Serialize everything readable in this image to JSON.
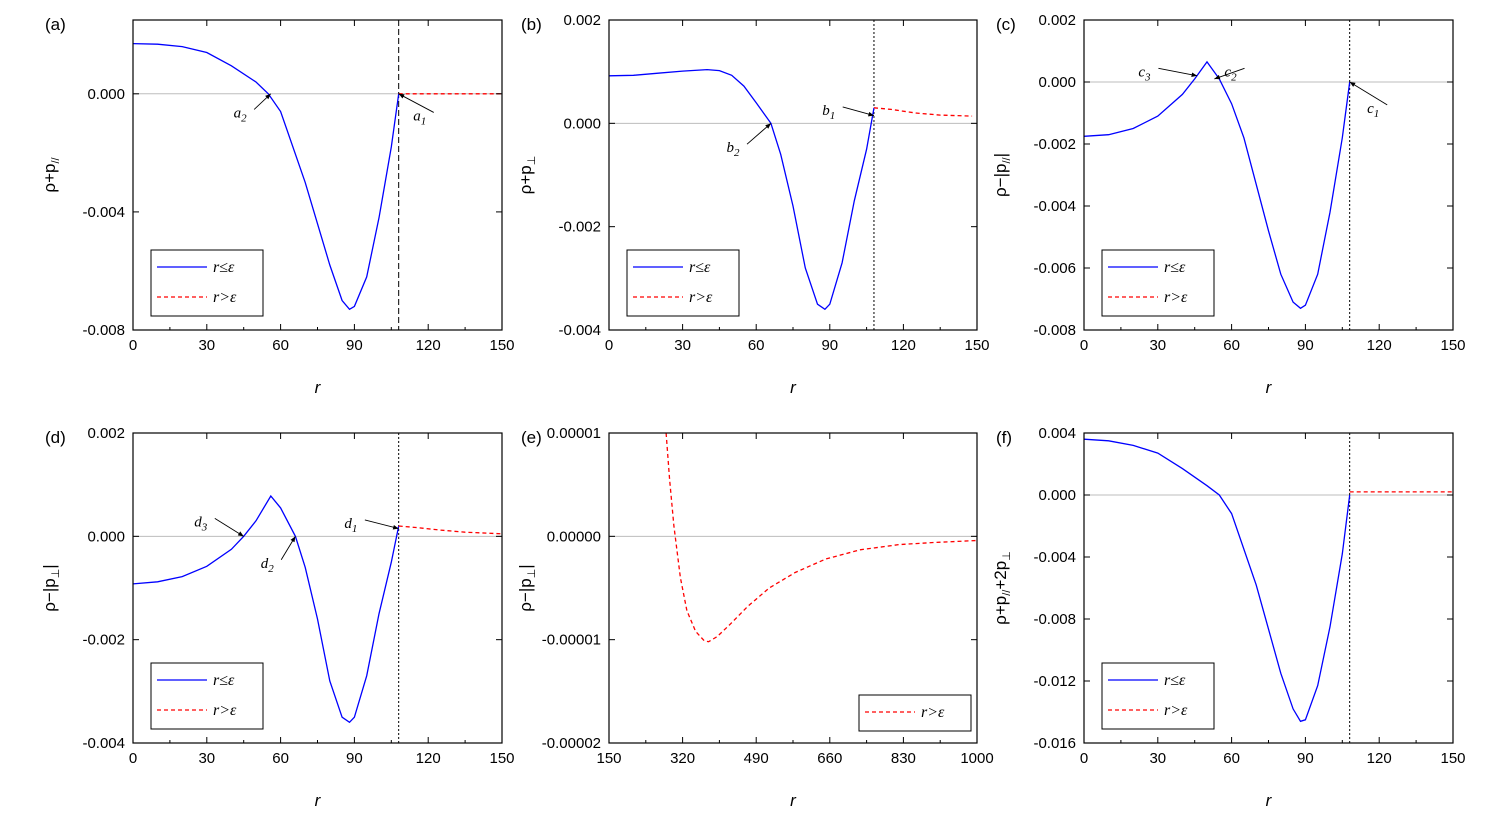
{
  "chart_data": [
    {
      "type": "line",
      "panel_label": "(a)",
      "xlabel": "r",
      "ylabel": [
        "ρ+p",
        "//"
      ],
      "xlim": [
        0,
        150
      ],
      "ylim": [
        -0.008,
        0.0025
      ],
      "xticks": [
        0,
        30,
        60,
        90,
        120,
        150
      ],
      "xtick_labels": [
        "0",
        "30",
        "60",
        "90",
        "120",
        "150"
      ],
      "yticks": [
        0.0,
        -0.004,
        -0.008
      ],
      "ytick_labels": [
        "0.000",
        "-0.004",
        "-0.008"
      ],
      "vline_x": 108,
      "vline_style": "dashed",
      "series": [
        {
          "name": "r≤ε",
          "color": "#0000ff",
          "dash": "solid",
          "x": [
            0,
            10,
            20,
            30,
            40,
            50,
            55,
            60,
            70,
            80,
            85,
            88,
            90,
            95,
            100,
            105,
            108
          ],
          "y": [
            0.0017,
            0.00168,
            0.0016,
            0.0014,
            0.00095,
            0.0004,
            0.0,
            -0.0006,
            -0.003,
            -0.0058,
            -0.007,
            -0.0073,
            -0.0072,
            -0.0062,
            -0.0042,
            -0.0018,
            0.0
          ]
        },
        {
          "name": "r>ε",
          "color": "#ff0000",
          "dash": "dashed",
          "x": [
            108,
            115,
            125,
            135,
            150
          ],
          "y": [
            0.0,
            0.0,
            0.0,
            0.0,
            0.0
          ]
        }
      ],
      "annotations": [
        {
          "base": "a",
          "sub": "2",
          "at": [
            56,
            0.0
          ],
          "text_at": [
            46,
            -0.0007
          ]
        },
        {
          "base": "a",
          "sub": "1",
          "at": [
            108,
            0.0
          ],
          "text_at": [
            119,
            -0.0008
          ]
        }
      ],
      "legend": {
        "position": "lower-left",
        "entries": [
          "r≤ε",
          "r>ε"
        ]
      }
    },
    {
      "type": "line",
      "panel_label": "(b)",
      "xlabel": "r",
      "ylabel": [
        "ρ+p",
        "⊥"
      ],
      "xlim": [
        0,
        150
      ],
      "ylim": [
        -0.004,
        0.002
      ],
      "xticks": [
        0,
        30,
        60,
        90,
        120,
        150
      ],
      "xtick_labels": [
        "0",
        "30",
        "60",
        "90",
        "120",
        "150"
      ],
      "yticks": [
        0.002,
        0.0,
        -0.002,
        -0.004
      ],
      "ytick_labels": [
        "0.002",
        "0.000",
        "-0.002",
        "-0.004"
      ],
      "vline_x": 108,
      "vline_style": "dotted",
      "series": [
        {
          "name": "r≤ε",
          "color": "#0000ff",
          "dash": "solid",
          "x": [
            0,
            10,
            20,
            30,
            40,
            45,
            50,
            55,
            60,
            66,
            70,
            75,
            80,
            85,
            88,
            90,
            95,
            100,
            105,
            108
          ],
          "y": [
            0.00092,
            0.00093,
            0.00097,
            0.00101,
            0.00104,
            0.00102,
            0.00093,
            0.00072,
            0.0004,
            0.0,
            -0.0006,
            -0.0016,
            -0.0028,
            -0.0035,
            -0.0036,
            -0.0035,
            -0.0027,
            -0.0015,
            -0.0005,
            0.0003
          ]
        },
        {
          "name": "r>ε",
          "color": "#ff0000",
          "dash": "dashed",
          "x": [
            108,
            115,
            125,
            135,
            148
          ],
          "y": [
            0.0003,
            0.00027,
            0.0002,
            0.00016,
            0.00014
          ]
        }
      ],
      "annotations": [
        {
          "base": "b",
          "sub": "2",
          "at": [
            66,
            0.0
          ],
          "text_at": [
            53,
            -0.0005
          ]
        },
        {
          "base": "b",
          "sub": "1",
          "at": [
            108,
            0.00015
          ],
          "text_at": [
            92,
            0.00022
          ]
        }
      ],
      "legend": {
        "position": "lower-left",
        "entries": [
          "r≤ε",
          "r>ε"
        ]
      }
    },
    {
      "type": "line",
      "panel_label": "(c)",
      "xlabel": "r",
      "ylabel": [
        "ρ−|p",
        "//",
        "|"
      ],
      "xlim": [
        0,
        150
      ],
      "ylim": [
        -0.008,
        0.002
      ],
      "xticks": [
        0,
        30,
        60,
        90,
        120,
        150
      ],
      "xtick_labels": [
        "0",
        "30",
        "60",
        "90",
        "120",
        "150"
      ],
      "yticks": [
        0.002,
        0.0,
        -0.002,
        -0.004,
        -0.006,
        -0.008
      ],
      "ytick_labels": [
        "0.002",
        "0.000",
        "-0.002",
        "-0.004",
        "-0.006",
        "-0.008"
      ],
      "vline_x": 108,
      "vline_style": "dotted",
      "series": [
        {
          "name": "r≤ε",
          "color": "#0000ff",
          "dash": "solid",
          "x": [
            0,
            10,
            20,
            30,
            40,
            45,
            50,
            55,
            60,
            65,
            70,
            75,
            80,
            85,
            88,
            90,
            95,
            100,
            105,
            108
          ],
          "y": [
            -0.00175,
            -0.0017,
            -0.0015,
            -0.0011,
            -0.0004,
            0.0001,
            0.00065,
            0.0001,
            -0.0007,
            -0.0018,
            -0.0033,
            -0.0048,
            -0.0062,
            -0.0071,
            -0.0073,
            -0.0072,
            -0.0062,
            -0.0042,
            -0.0018,
            0.0
          ]
        }
      ],
      "annotations": [
        {
          "base": "c",
          "sub": "3",
          "at": [
            46,
            0.0002
          ],
          "text_at": [
            27,
            0.00028
          ]
        },
        {
          "base": "c",
          "sub": "2",
          "at": [
            53,
            0.0001
          ],
          "text_at": [
            62,
            0.00028
          ]
        },
        {
          "base": "c",
          "sub": "1",
          "at": [
            108,
            0.0
          ],
          "text_at": [
            120,
            -0.0009
          ]
        }
      ],
      "legend": {
        "position": "lower-left",
        "entries": [
          "r≤ε",
          "r>ε"
        ]
      }
    },
    {
      "type": "line",
      "panel_label": "(d)",
      "xlabel": "r",
      "ylabel": [
        "ρ−|p",
        "⊥",
        "|"
      ],
      "xlim": [
        0,
        150
      ],
      "ylim": [
        -0.004,
        0.002
      ],
      "xticks": [
        0,
        30,
        60,
        90,
        120,
        150
      ],
      "xtick_labels": [
        "0",
        "30",
        "60",
        "90",
        "120",
        "150"
      ],
      "yticks": [
        0.002,
        0.0,
        -0.002,
        -0.004
      ],
      "ytick_labels": [
        "0.002",
        "0.000",
        "-0.002",
        "-0.004"
      ],
      "vline_x": 108,
      "vline_style": "dotted",
      "series": [
        {
          "name": "r≤ε",
          "color": "#0000ff",
          "dash": "solid",
          "x": [
            0,
            10,
            20,
            30,
            40,
            45,
            50,
            56,
            60,
            66,
            70,
            75,
            80,
            85,
            88,
            90,
            95,
            100,
            105,
            108
          ],
          "y": [
            -0.00092,
            -0.00088,
            -0.00078,
            -0.00058,
            -0.00025,
            0.0,
            0.0003,
            0.00078,
            0.00055,
            0.0,
            -0.0006,
            -0.0016,
            -0.0028,
            -0.0035,
            -0.0036,
            -0.0035,
            -0.0027,
            -0.0015,
            -0.0005,
            0.0002
          ]
        },
        {
          "name": "r>ε",
          "color": "#ff0000",
          "dash": "dashed",
          "x": [
            108,
            115,
            125,
            135,
            150
          ],
          "y": [
            0.0002,
            0.00017,
            0.00012,
            8e-05,
            5e-05
          ]
        }
      ],
      "annotations": [
        {
          "base": "d",
          "sub": "3",
          "at": [
            45,
            0.0
          ],
          "text_at": [
            30,
            0.00025
          ]
        },
        {
          "base": "d",
          "sub": "2",
          "at": [
            66,
            0.0
          ],
          "text_at": [
            57,
            -0.00055
          ]
        },
        {
          "base": "d",
          "sub": "1",
          "at": [
            108,
            0.00015
          ],
          "text_at": [
            91,
            0.00022
          ]
        }
      ],
      "legend": {
        "position": "lower-left",
        "entries": [
          "r≤ε",
          "r>ε"
        ]
      }
    },
    {
      "type": "line",
      "panel_label": "(e)",
      "xlabel": "r",
      "ylabel": [
        "ρ−|p",
        "⊥",
        "|"
      ],
      "xlim": [
        150,
        1000
      ],
      "ylim": [
        -2e-05,
        1e-05
      ],
      "xticks": [
        150,
        320,
        490,
        660,
        830,
        1000
      ],
      "xtick_labels": [
        "150",
        "320",
        "490",
        "660",
        "830",
        "1000"
      ],
      "yticks": [
        1e-05,
        0.0,
        -1e-05,
        -2e-05
      ],
      "ytick_labels": [
        "0.00001",
        "0.00000",
        "-0.00001",
        "-0.00002"
      ],
      "vline_x": null,
      "series": [
        {
          "name": "r>ε",
          "color": "#ff0000",
          "dash": "dashed",
          "x": [
            282,
            290,
            300,
            315,
            330,
            350,
            370,
            380,
            400,
            430,
            470,
            520,
            580,
            650,
            730,
            820,
            900,
            1000
          ],
          "y": [
            1e-05,
            5.5e-06,
            1e-06,
            -4e-06,
            -7.2e-06,
            -9.2e-06,
            -1.01e-05,
            -1.02e-05,
            -9.7e-06,
            -8.5e-06,
            -6.8e-06,
            -5e-06,
            -3.5e-06,
            -2.2e-06,
            -1.3e-06,
            -8e-07,
            -6e-07,
            -4e-07
          ]
        }
      ],
      "annotations": [],
      "legend": {
        "position": "lower-right",
        "entries": [
          "r>ε"
        ]
      }
    },
    {
      "type": "line",
      "panel_label": "(f)",
      "xlabel": "r",
      "ylabel": [
        "ρ+p",
        "//",
        "+2p",
        "⊥"
      ],
      "xlim": [
        0,
        150
      ],
      "ylim": [
        -0.016,
        0.004
      ],
      "xticks": [
        0,
        30,
        60,
        90,
        120,
        150
      ],
      "xtick_labels": [
        "0",
        "30",
        "60",
        "90",
        "120",
        "150"
      ],
      "yticks": [
        0.004,
        0.0,
        -0.004,
        -0.008,
        -0.012,
        -0.016
      ],
      "ytick_labels": [
        "0.004",
        "0.000",
        "-0.004",
        "-0.008",
        "-0.012",
        "-0.016"
      ],
      "vline_x": 108,
      "vline_style": "dotted",
      "series": [
        {
          "name": "r≤ε",
          "color": "#0000ff",
          "dash": "solid",
          "x": [
            0,
            10,
            20,
            30,
            40,
            50,
            55,
            60,
            70,
            80,
            85,
            88,
            90,
            95,
            100,
            105,
            108
          ],
          "y": [
            0.0036,
            0.0035,
            0.0032,
            0.0027,
            0.0017,
            0.0006,
            0.0,
            -0.0012,
            -0.0058,
            -0.0115,
            -0.0138,
            -0.0146,
            -0.0145,
            -0.0123,
            -0.0085,
            -0.0038,
            0.0
          ]
        },
        {
          "name": "r>ε",
          "color": "#ff0000",
          "dash": "dashed",
          "x": [
            108,
            115,
            125,
            135,
            150
          ],
          "y": [
            0.0002,
            0.0002,
            0.0002,
            0.0002,
            0.0002
          ]
        }
      ],
      "annotations": [],
      "legend": {
        "position": "lower-left",
        "entries": [
          "r≤ε",
          "r>ε"
        ]
      }
    }
  ]
}
